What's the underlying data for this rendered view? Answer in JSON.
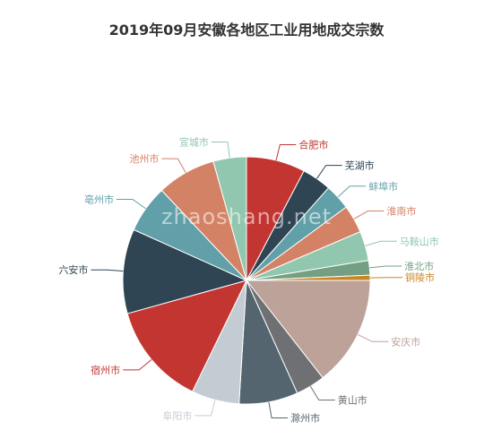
{
  "chart_data": {
    "type": "pie",
    "title": "2019年09月安徽各地区工业用地成交宗数",
    "watermark": "zhaoshang.net",
    "slices": [
      {
        "label": "合肥市",
        "value": 8,
        "color": "#c23531"
      },
      {
        "label": "芜湖市",
        "value": 4,
        "color": "#2f4554"
      },
      {
        "label": "蚌埠市",
        "value": 3.5,
        "color": "#61a0a8"
      },
      {
        "label": "淮南市",
        "value": 3.8,
        "color": "#d48265"
      },
      {
        "label": "马鞍山市",
        "value": 4,
        "color": "#91c7ae"
      },
      {
        "label": "淮北市",
        "value": 2,
        "color": "#749f83"
      },
      {
        "label": "铜陵市",
        "value": 0.7,
        "color": "#ca8622"
      },
      {
        "label": "安庆市",
        "value": 15,
        "color": "#bda29a"
      },
      {
        "label": "黄山市",
        "value": 4,
        "color": "#6e7074"
      },
      {
        "label": "滁州市",
        "value": 8,
        "color": "#546570"
      },
      {
        "label": "阜阳市",
        "value": 6.5,
        "color": "#c4ccd3"
      },
      {
        "label": "宿州市",
        "value": 14,
        "color": "#c23531"
      },
      {
        "label": "六安市",
        "value": 11.5,
        "color": "#2f4554"
      },
      {
        "label": "亳州市",
        "value": 6.5,
        "color": "#61a0a8"
      },
      {
        "label": "池州市",
        "value": 8,
        "color": "#d48265"
      },
      {
        "label": "宣城市",
        "value": 4.5,
        "color": "#91c7ae"
      }
    ]
  }
}
